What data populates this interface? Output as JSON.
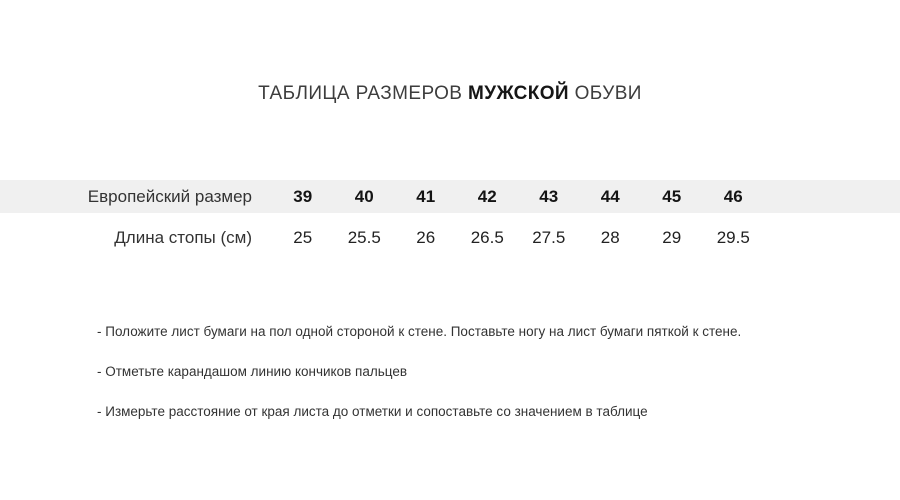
{
  "title": {
    "prefix": "ТАБЛИЦА РАЗМЕРОВ ",
    "emphasis": "МУЖСКОЙ",
    "suffix": " ОБУВИ"
  },
  "size_table": {
    "rows": [
      {
        "label": "Европейский размер",
        "values": [
          "39",
          "40",
          "41",
          "42",
          "43",
          "44",
          "45",
          "46"
        ]
      },
      {
        "label": "Длина стопы (см)",
        "values": [
          "25",
          "25.5",
          "26",
          "26.5",
          "27.5",
          "28",
          "29",
          "29.5"
        ]
      }
    ]
  },
  "instructions": [
    "- Положите лист бумаги на пол одной стороной к стене. Поставьте ногу на лист бумаги пяткой к стене.",
    "- Отметьте карандашом линию кончиков пальцев",
    "- Измерьте расстояние от края листа до отметки и сопоставьте со значением в таблице"
  ],
  "colors": {
    "header_row_background": "#f0f0f0",
    "title_text": "#3d3d3d",
    "title_emphasis": "#161616",
    "body_text": "#333333"
  }
}
